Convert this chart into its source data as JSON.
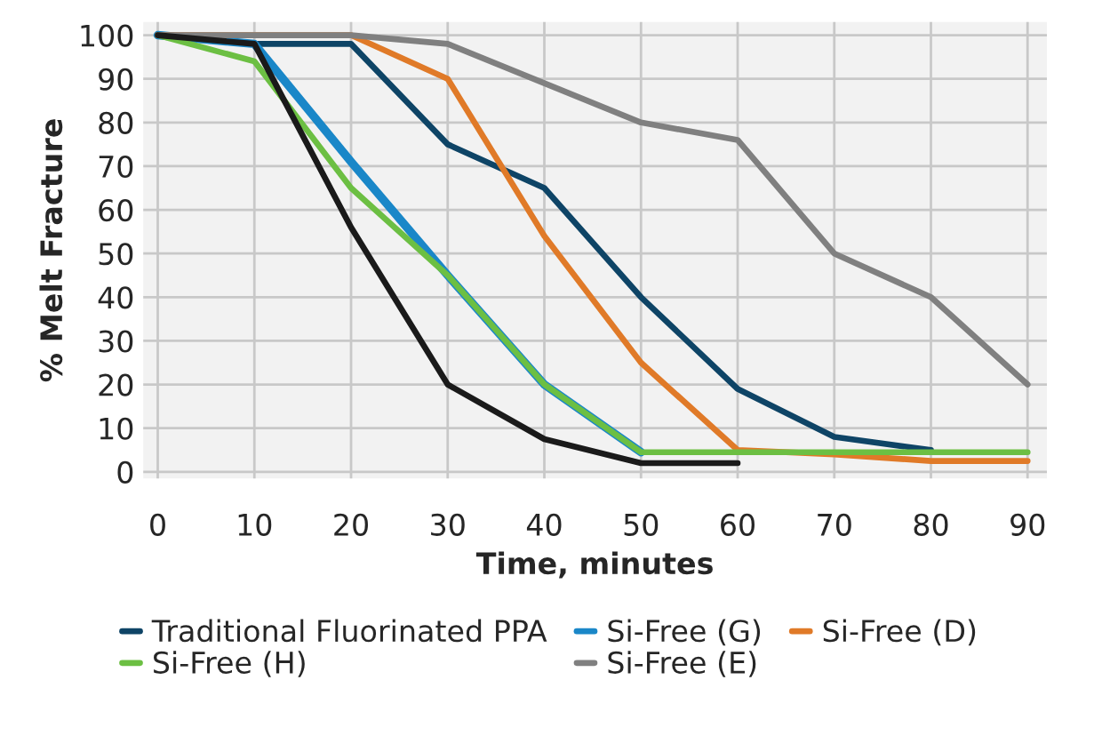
{
  "chart_data": {
    "type": "line",
    "xlabel": "Time, minutes",
    "ylabel": "% Melt Fracture",
    "x": [
      0,
      10,
      20,
      30,
      40,
      50,
      60,
      70,
      80,
      90
    ],
    "series": [
      {
        "name": "Traditional Fluorinated PPA",
        "color": "#0e4466",
        "values": [
          100,
          98,
          98,
          75,
          65,
          40,
          19,
          8,
          5,
          null
        ]
      },
      {
        "name": "Si-Free (G)",
        "color": "#1a87c8",
        "values": [
          100,
          98,
          71,
          45,
          20,
          4.5,
          null,
          null,
          null,
          null
        ]
      },
      {
        "name": "Si-Free (D)",
        "color": "#e07a28",
        "values": [
          100,
          100,
          100,
          90,
          54,
          25,
          5,
          4,
          2.5,
          2.5
        ]
      },
      {
        "name": "Si-Free (H)",
        "color": "#6cbf43",
        "values": [
          100,
          94,
          65,
          45,
          20,
          4.5,
          4.5,
          4.5,
          4.5,
          4.5
        ]
      },
      {
        "name": "Si-Free (E)",
        "color": "#808080",
        "values": [
          100,
          100,
          100,
          98,
          89,
          80,
          76,
          50,
          40,
          20
        ]
      },
      {
        "color": "#1a1a1a",
        "values": [
          100,
          98,
          56,
          20,
          7.5,
          2,
          2,
          null,
          null,
          null
        ]
      }
    ],
    "xlim": [
      -1.5,
      92
    ],
    "xticks": [
      0,
      10,
      20,
      30,
      40,
      50,
      60,
      70,
      80,
      90
    ],
    "ylim": [
      -1.5,
      103
    ],
    "yticks": [
      0,
      10,
      20,
      30,
      40,
      50,
      60,
      70,
      80,
      90,
      100
    ],
    "grid": true,
    "legend": "bottom",
    "marker": "none",
    "line_style": "solid"
  }
}
